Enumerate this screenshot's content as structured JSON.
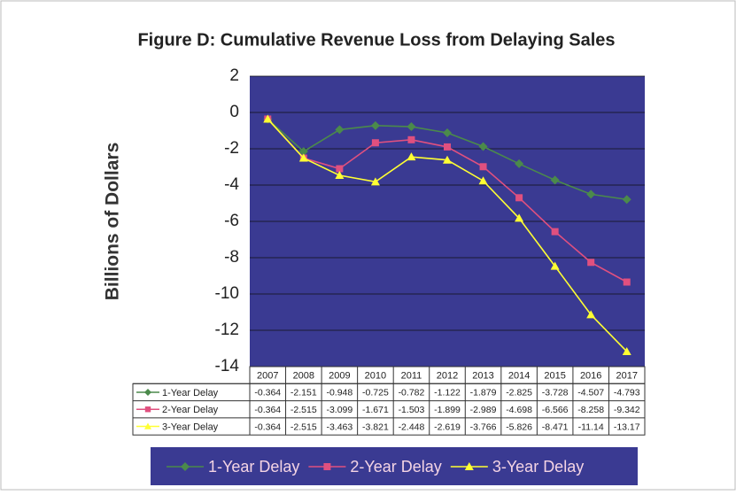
{
  "chart_data": {
    "type": "line",
    "title": "Figure D: Cumulative Revenue Loss from Delaying Sales",
    "y_label": "Billions of Dollars",
    "categories": [
      "2007",
      "2008",
      "2009",
      "2010",
      "2011",
      "2012",
      "2013",
      "2014",
      "2015",
      "2016",
      "2017"
    ],
    "series": [
      {
        "name": "1-Year Delay",
        "color": "#4b8a4b",
        "marker": "diamond",
        "values": [
          -0.364,
          -2.151,
          -0.948,
          -0.725,
          -0.782,
          -1.122,
          -1.879,
          -2.825,
          -3.728,
          -4.507,
          -4.793
        ]
      },
      {
        "name": "2-Year Delay",
        "color": "#e0507f",
        "marker": "square",
        "values": [
          -0.364,
          -2.515,
          -3.099,
          -1.671,
          -1.503,
          -1.899,
          -2.989,
          -4.698,
          -6.566,
          -8.258,
          -9.342
        ]
      },
      {
        "name": "3-Year Delay",
        "color": "#ffff33",
        "marker": "triangle",
        "values": [
          -0.364,
          -2.515,
          -3.463,
          -3.821,
          -2.448,
          -2.619,
          -3.766,
          -5.826,
          -8.471,
          -11.14,
          -13.17
        ]
      }
    ],
    "ylim": [
      -14,
      2
    ],
    "yticks": [
      -14,
      -12,
      -10,
      -8,
      -6,
      -4,
      -2,
      0,
      2
    ],
    "grid": true,
    "legend": "bottom"
  }
}
